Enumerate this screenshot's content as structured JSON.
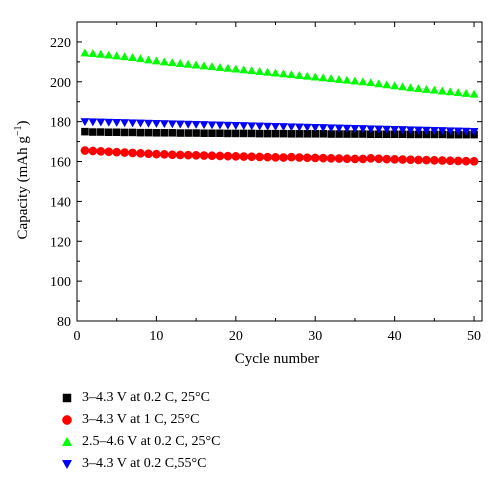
{
  "chart_data": {
    "type": "scatter",
    "xlabel": "Cycle number",
    "ylabel": "Capacity (mAh g",
    "ylabel_sup": "−1",
    "ylabel_close": ")",
    "xlim": [
      0,
      51
    ],
    "ylim": [
      80,
      230
    ],
    "x_ticks": [
      0,
      10,
      20,
      30,
      40,
      50
    ],
    "y_ticks": [
      80,
      100,
      120,
      140,
      160,
      180,
      200,
      220
    ],
    "x_tick_labels": [
      "0",
      "10",
      "20",
      "30",
      "40",
      "50"
    ],
    "y_tick_labels": [
      "80",
      "100",
      "120",
      "140",
      "160",
      "180",
      "200",
      "220"
    ],
    "grid": false,
    "legend_position": "below",
    "series": [
      {
        "name": "3–4.3 V at 0.2 C, 25°C",
        "marker": "square",
        "color": "#000000",
        "x": [
          1,
          2,
          3,
          4,
          5,
          6,
          7,
          8,
          9,
          10,
          11,
          12,
          13,
          14,
          15,
          16,
          17,
          18,
          19,
          20,
          21,
          22,
          23,
          24,
          25,
          26,
          27,
          28,
          29,
          30,
          31,
          32,
          33,
          34,
          35,
          36,
          37,
          38,
          39,
          40,
          41,
          42,
          43,
          44,
          45,
          46,
          47,
          48,
          49,
          50
        ],
        "y": [
          175.0,
          174.8,
          174.8,
          174.7,
          174.7,
          174.6,
          174.6,
          174.5,
          174.5,
          174.4,
          174.4,
          174.4,
          174.3,
          174.3,
          174.3,
          174.2,
          174.2,
          174.2,
          174.1,
          174.1,
          174.1,
          174.1,
          174.0,
          174.0,
          174.0,
          174.0,
          173.9,
          173.9,
          173.9,
          173.9,
          173.9,
          173.8,
          173.8,
          173.8,
          173.8,
          173.8,
          173.7,
          173.7,
          173.7,
          173.7,
          173.7,
          173.6,
          173.6,
          173.6,
          173.6,
          173.6,
          173.5,
          173.5,
          173.5,
          173.5
        ]
      },
      {
        "name": "3–4.3 V at 1 C, 25°C",
        "marker": "circle",
        "color": "#ff0000",
        "x": [
          1,
          2,
          3,
          4,
          5,
          6,
          7,
          8,
          9,
          10,
          11,
          12,
          13,
          14,
          15,
          16,
          17,
          18,
          19,
          20,
          21,
          22,
          23,
          24,
          25,
          26,
          27,
          28,
          29,
          30,
          31,
          32,
          33,
          34,
          35,
          36,
          37,
          38,
          39,
          40,
          41,
          42,
          43,
          44,
          45,
          46,
          47,
          48,
          49,
          50
        ],
        "y": [
          165.5,
          165.3,
          165.1,
          164.9,
          164.7,
          164.5,
          164.3,
          164.1,
          163.9,
          163.7,
          163.6,
          163.4,
          163.3,
          163.2,
          163.1,
          163.0,
          162.9,
          162.8,
          162.7,
          162.6,
          162.5,
          162.4,
          162.3,
          162.2,
          162.1,
          162.0,
          162.2,
          162.0,
          161.9,
          161.8,
          161.7,
          161.6,
          161.5,
          161.4,
          161.3,
          161.3,
          161.6,
          161.4,
          161.2,
          161.1,
          161.0,
          160.9,
          160.8,
          160.7,
          160.6,
          160.5,
          160.4,
          160.3,
          160.2,
          160.1
        ]
      },
      {
        "name": "2.5–4.6 V at 0.2 C, 25°C",
        "marker": "triangle-up",
        "color": "#00ff00",
        "x": [
          1,
          2,
          3,
          4,
          5,
          6,
          7,
          8,
          9,
          10,
          11,
          12,
          13,
          14,
          15,
          16,
          17,
          18,
          19,
          20,
          21,
          22,
          23,
          24,
          25,
          26,
          27,
          28,
          29,
          30,
          31,
          32,
          33,
          34,
          35,
          36,
          37,
          38,
          39,
          40,
          41,
          42,
          43,
          44,
          45,
          46,
          47,
          48,
          49,
          50
        ],
        "y": [
          214.5,
          214.2,
          213.8,
          213.4,
          213.0,
          212.6,
          212.2,
          211.6,
          211.0,
          210.5,
          210.0,
          209.6,
          209.2,
          208.8,
          208.4,
          208.0,
          207.6,
          207.2,
          206.8,
          206.4,
          206.0,
          205.6,
          205.2,
          204.8,
          204.4,
          204.0,
          203.6,
          203.2,
          202.8,
          202.4,
          202.0,
          201.6,
          201.2,
          200.8,
          200.4,
          200.0,
          199.6,
          199.0,
          198.5,
          198.0,
          197.5,
          197.0,
          196.6,
          196.2,
          195.8,
          195.4,
          195.0,
          194.6,
          194.2,
          193.8
        ]
      },
      {
        "name": "3–4.3 V at 0.2 C,55°C",
        "marker": "triangle-down",
        "color": "#0000ff",
        "x": [
          1,
          2,
          3,
          4,
          5,
          6,
          7,
          8,
          9,
          10,
          11,
          12,
          13,
          14,
          15,
          16,
          17,
          18,
          19,
          20,
          21,
          22,
          23,
          24,
          25,
          26,
          27,
          28,
          29,
          30,
          31,
          32,
          33,
          34,
          35,
          36,
          37,
          38,
          39,
          40,
          41,
          42,
          43,
          44,
          45,
          46,
          47,
          48,
          49,
          50
        ],
        "y": [
          180.0,
          179.9,
          179.8,
          179.7,
          179.6,
          179.5,
          179.4,
          179.3,
          179.2,
          179.1,
          179.0,
          178.9,
          178.8,
          178.7,
          178.6,
          178.5,
          178.4,
          178.3,
          178.2,
          178.1,
          178.0,
          177.9,
          177.8,
          177.7,
          177.6,
          177.5,
          177.4,
          177.3,
          177.2,
          177.1,
          177.0,
          176.9,
          176.8,
          176.7,
          176.6,
          176.5,
          176.4,
          176.3,
          176.2,
          176.1,
          176.0,
          175.9,
          175.8,
          175.7,
          175.6,
          175.5,
          175.4,
          175.3,
          175.2,
          175.1
        ]
      }
    ]
  }
}
